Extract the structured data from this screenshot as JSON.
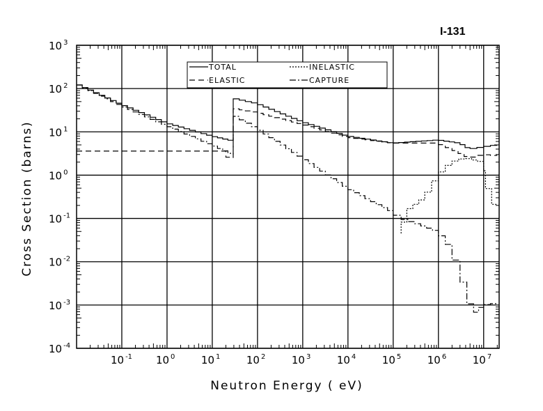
{
  "chart_data": {
    "type": "line",
    "title": "I-131",
    "xlabel": "Neutron Energy ( eV)",
    "ylabel": "Cross Section (barns)",
    "xscale": "log",
    "yscale": "log",
    "xlim": [
      0.01,
      22000000
    ],
    "ylim": [
      0.0001,
      1000
    ],
    "grid": true,
    "legend_position": "top-center",
    "x_ticks": [
      {
        "value": 0.1,
        "base": "10",
        "exp": "-1"
      },
      {
        "value": 1,
        "base": "10",
        "exp": "0"
      },
      {
        "value": 10,
        "base": "10",
        "exp": "1"
      },
      {
        "value": 100,
        "base": "10",
        "exp": "2"
      },
      {
        "value": 1000,
        "base": "10",
        "exp": "3"
      },
      {
        "value": 10000,
        "base": "10",
        "exp": "4"
      },
      {
        "value": 100000,
        "base": "10",
        "exp": "5"
      },
      {
        "value": 1000000,
        "base": "10",
        "exp": "6"
      },
      {
        "value": 10000000,
        "base": "10",
        "exp": "7"
      }
    ],
    "y_ticks": [
      {
        "value": 1000,
        "base": "10",
        "exp": "3"
      },
      {
        "value": 100,
        "base": "10",
        "exp": "2"
      },
      {
        "value": 10,
        "base": "10",
        "exp": "1"
      },
      {
        "value": 1,
        "base": "10",
        "exp": "0"
      },
      {
        "value": 0.1,
        "base": "10",
        "exp": "-1"
      },
      {
        "value": 0.01,
        "base": "10",
        "exp": "-2"
      },
      {
        "value": 0.001,
        "base": "10",
        "exp": "-3"
      },
      {
        "value": 0.0001,
        "base": "10",
        "exp": "-4"
      }
    ],
    "series": [
      {
        "name": "TOTAL",
        "style": "solid",
        "x": [
          0.01,
          0.1,
          1,
          10,
          29,
          29,
          100,
          1000,
          10000,
          100000,
          1000000,
          3000000,
          5000000,
          10000000,
          20000000
        ],
        "y": [
          130,
          43,
          16,
          8,
          6.2,
          60,
          45,
          17,
          8,
          5.5,
          6.5,
          5.5,
          4,
          4.5,
          5
        ]
      },
      {
        "name": "ELASTIC",
        "style": "dashed",
        "x": [
          0.01,
          20,
          20,
          29,
          29,
          100,
          1000,
          10000,
          100000,
          1000000,
          2000000,
          5000000,
          10000000,
          20000000
        ],
        "y": [
          3.6,
          3.6,
          2.7,
          2.5,
          35,
          28,
          15,
          7.5,
          5.5,
          5.5,
          4,
          2.5,
          3,
          2.8
        ]
      },
      {
        "name": "INELASTIC",
        "style": "dotted",
        "x": [
          150000,
          150000,
          200000,
          500000,
          1000000,
          2000000,
          4000000,
          10000000,
          11000000,
          15000000,
          20000000
        ],
        "y": [
          0.045,
          0.045,
          0.15,
          0.3,
          1.0,
          2.0,
          2.5,
          2.0,
          0.8,
          0.3,
          0.15
        ]
      },
      {
        "name": "CAPTURE",
        "style": "dashdot",
        "x": [
          0.01,
          0.1,
          1,
          10,
          29,
          29,
          100,
          1000,
          10000,
          100000,
          150000,
          300000,
          1000000,
          2000000,
          3000000,
          6000000,
          10000000,
          20000000
        ],
        "y": [
          130,
          40,
          14,
          5,
          3,
          25,
          12,
          2.5,
          0.5,
          0.14,
          0.1,
          0.08,
          0.05,
          0.02,
          0.006,
          0.0006,
          0.001,
          0.0011
        ]
      }
    ]
  }
}
